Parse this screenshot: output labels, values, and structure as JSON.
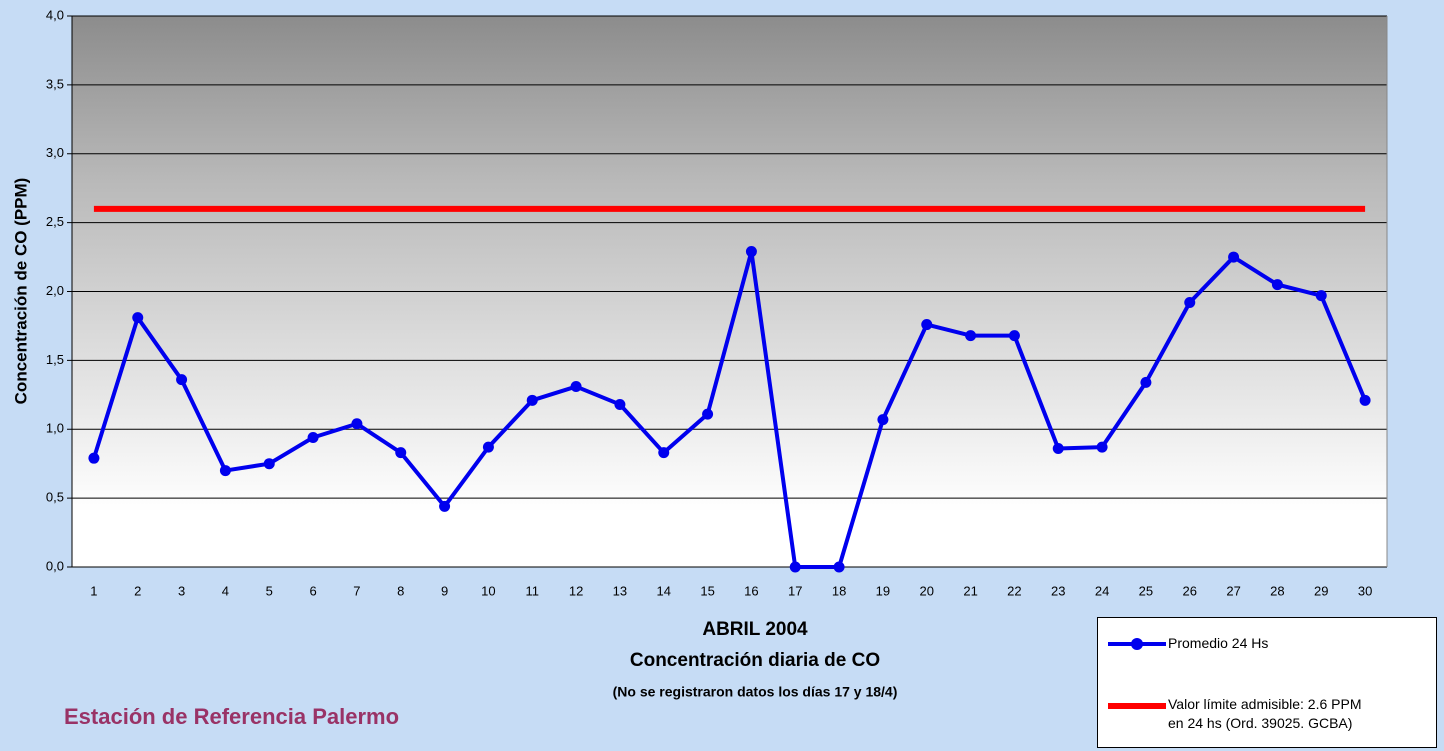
{
  "chart_data": {
    "type": "line",
    "title": "ABRIL 2004",
    "subtitle": "Concentración diaria de CO",
    "note": "(No se registraron datos los días 17 y 18/4)",
    "station": "Estación de Referencia Palermo",
    "y_label": "Concentración de CO (PPM)",
    "categories": [
      "1",
      "2",
      "3",
      "4",
      "5",
      "6",
      "7",
      "8",
      "9",
      "10",
      "11",
      "12",
      "13",
      "14",
      "15",
      "16",
      "17",
      "18",
      "19",
      "20",
      "21",
      "22",
      "23",
      "24",
      "25",
      "26",
      "27",
      "28",
      "29",
      "30"
    ],
    "series": [
      {
        "name": "Promedio 24 Hs",
        "color": "#0000ee",
        "markers": true,
        "values": [
          0.79,
          1.81,
          1.36,
          0.7,
          0.75,
          0.94,
          1.04,
          0.83,
          0.44,
          0.87,
          1.21,
          1.31,
          1.18,
          0.83,
          1.11,
          2.29,
          0,
          0,
          1.07,
          1.76,
          1.68,
          1.68,
          0.86,
          0.87,
          1.34,
          1.92,
          2.25,
          2.05,
          1.97,
          1.21
        ]
      },
      {
        "name": "Valor límite admisible: 2.6 PPM en 24 hs (Ord. 39025. GCBA)",
        "color": "#ff0000",
        "markers": false,
        "values": [
          2.6,
          2.6,
          2.6,
          2.6,
          2.6,
          2.6,
          2.6,
          2.6,
          2.6,
          2.6,
          2.6,
          2.6,
          2.6,
          2.6,
          2.6,
          2.6,
          2.6,
          2.6,
          2.6,
          2.6,
          2.6,
          2.6,
          2.6,
          2.6,
          2.6,
          2.6,
          2.6,
          2.6,
          2.6,
          2.6
        ]
      }
    ],
    "ylim": [
      0,
      4
    ],
    "yticks": [
      {
        "value": 0,
        "label": "0,0"
      },
      {
        "value": 0.5,
        "label": "0,5"
      },
      {
        "value": 1,
        "label": "1,0"
      },
      {
        "value": 1.5,
        "label": "1,5"
      },
      {
        "value": 2,
        "label": "2,0"
      },
      {
        "value": 2.5,
        "label": "2,5"
      },
      {
        "value": 3,
        "label": "3,0"
      },
      {
        "value": 3.5,
        "label": "3,5"
      },
      {
        "value": 4,
        "label": "4,0"
      }
    ],
    "grid": true
  }
}
